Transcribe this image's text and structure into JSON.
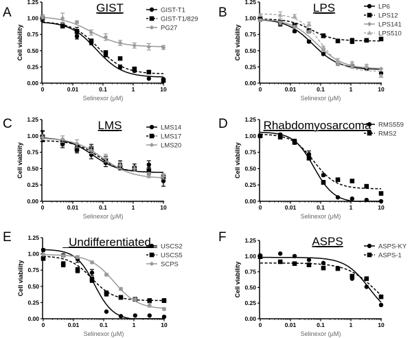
{
  "chart_data": [
    {
      "type": "line",
      "panel": "A",
      "title": "GIST",
      "xlabel": "Selinexor (μM)",
      "ylabel": "Cell viability",
      "xscale": "log",
      "xtick_labels": [
        "0",
        "0.01",
        "0.1",
        "1",
        "10"
      ],
      "ytick_labels": [
        "0.00",
        "0.25",
        "0.50",
        "0.75",
        "1.00",
        "1.25"
      ],
      "ylim": [
        0,
        1.25
      ],
      "legend_position": "top-right",
      "x": [
        0,
        0.0046,
        0.0137,
        0.041,
        0.123,
        0.37,
        1.1,
        3.3,
        10
      ],
      "series": [
        {
          "name": "GIST-T1",
          "color": "#000000",
          "marker": "circle",
          "dash": "solid",
          "values": [
            1.0,
            0.9,
            0.72,
            0.62,
            0.43,
            0.25,
            0.19,
            0.07,
            0.06
          ],
          "errors": [
            0.05,
            0.03,
            0.04,
            0.03,
            0.02,
            0.03,
            0.02,
            0.01,
            0.01
          ],
          "fit": {
            "top": 0.95,
            "bottom": 0.09,
            "ic50": 0.06,
            "hill": 1.0
          }
        },
        {
          "name": "GIST-T1/829",
          "color": "#000000",
          "marker": "square",
          "dash": "dashed",
          "values": [
            1.0,
            0.88,
            0.8,
            0.65,
            0.47,
            0.38,
            0.22,
            0.17,
            0.04
          ],
          "errors": [
            0.05,
            0.03,
            0.06,
            0.03,
            0.03,
            0.02,
            0.02,
            0.02,
            0.02
          ],
          "fit": {
            "top": 0.95,
            "bottom": 0.14,
            "ic50": 0.07,
            "hill": 1.0
          }
        },
        {
          "name": "PG27",
          "color": "#999999",
          "marker": "diamond",
          "dash": "solid",
          "values": [
            1.02,
            1.0,
            0.94,
            0.78,
            0.71,
            0.62,
            0.58,
            0.56,
            0.55
          ],
          "errors": [
            0.03,
            0.08,
            0.02,
            0.04,
            0.05,
            0.04,
            0.04,
            0.05,
            0.03
          ],
          "fit": {
            "top": 1.03,
            "bottom": 0.56,
            "ic50": 0.04,
            "hill": 0.9
          }
        }
      ]
    },
    {
      "type": "line",
      "panel": "B",
      "title": "LPS",
      "xlabel": "Selinexor (μM)",
      "ylabel": "Cell viability",
      "xscale": "log",
      "xtick_labels": [
        "0",
        "0.01",
        "0.1",
        "1",
        "10"
      ],
      "ytick_labels": [
        "0.00",
        "0.25",
        "0.50",
        "0.75",
        "1.00",
        "1.25"
      ],
      "ylim": [
        0,
        1.25
      ],
      "legend_position": "top-right",
      "x": [
        0,
        0.0046,
        0.0137,
        0.041,
        0.123,
        0.37,
        1.1,
        3.3,
        10
      ],
      "series": [
        {
          "name": "LP6",
          "color": "#000000",
          "marker": "circle",
          "dash": "solid",
          "values": [
            0.98,
            0.92,
            0.8,
            0.64,
            0.45,
            0.31,
            0.27,
            0.22,
            0.15
          ],
          "errors": [
            0.03,
            0.04,
            0.02,
            0.02,
            0.02,
            0.02,
            0.02,
            0.02,
            0.02
          ],
          "fit": {
            "top": 0.99,
            "bottom": 0.21,
            "ic50": 0.055,
            "hill": 1.0
          }
        },
        {
          "name": "LPS12",
          "color": "#000000",
          "marker": "square",
          "dash": "dashed",
          "values": [
            1.0,
            0.93,
            0.89,
            0.81,
            0.73,
            0.65,
            0.65,
            0.66,
            0.68
          ],
          "errors": [
            0.03,
            0.04,
            0.03,
            0.02,
            0.03,
            0.02,
            0.04,
            0.01,
            0.01
          ],
          "fit": {
            "top": 0.99,
            "bottom": 0.65,
            "ic50": 0.05,
            "hill": 1.2
          }
        },
        {
          "name": "LPS141",
          "color": "#999999",
          "marker": "diamond",
          "dash": "solid",
          "values": [
            0.97,
            0.93,
            0.87,
            0.79,
            0.52,
            0.29,
            0.25,
            0.24,
            0.22
          ],
          "errors": [
            0.02,
            0.03,
            0.02,
            0.02,
            0.02,
            0.02,
            0.02,
            0.01,
            0.01
          ],
          "fit": {
            "top": 0.99,
            "bottom": 0.22,
            "ic50": 0.075,
            "hill": 1.0
          }
        },
        {
          "name": "LPS510",
          "color": "#aaaaaa",
          "marker": "triangle",
          "dash": "dashed",
          "values": [
            1.05,
            1.05,
            1.03,
            0.91,
            0.55,
            0.35,
            0.31,
            0.27,
            0.11
          ],
          "errors": [
            0.02,
            0.05,
            0.03,
            0.03,
            0.02,
            0.03,
            0.02,
            0.02,
            0.02
          ],
          "fit": {
            "top": 1.07,
            "bottom": 0.18,
            "ic50": 0.1,
            "hill": 1.2
          }
        }
      ]
    },
    {
      "type": "line",
      "panel": "C",
      "title": "LMS",
      "xlabel": "Selinexor (μM)",
      "ylabel": "Cell viability",
      "xscale": "log",
      "xtick_labels": [
        "0",
        "0.01",
        "0.1",
        "1",
        "10"
      ],
      "ytick_labels": [
        "0.00",
        "0.25",
        "0.50",
        "0.75",
        "1.00",
        "1.25"
      ],
      "ylim": [
        0,
        1.25
      ],
      "legend_position": "top-right",
      "x": [
        0,
        0.0046,
        0.0137,
        0.041,
        0.123,
        0.37,
        1.1,
        3.3,
        10
      ],
      "series": [
        {
          "name": "LMS14",
          "color": "#000000",
          "marker": "circle",
          "dash": "solid",
          "values": [
            1.0,
            0.88,
            0.82,
            0.71,
            0.59,
            0.55,
            0.52,
            0.56,
            0.31
          ],
          "errors": [
            0.08,
            0.06,
            0.06,
            0.06,
            0.06,
            0.07,
            0.05,
            0.06,
            0.08
          ],
          "fit": {
            "top": 0.98,
            "bottom": 0.44,
            "ic50": 0.045,
            "hill": 1.0
          }
        },
        {
          "name": "LMS17",
          "color": "#000000",
          "marker": "square",
          "dash": "dashed",
          "values": [
            0.99,
            0.9,
            0.8,
            0.81,
            0.63,
            0.53,
            0.5,
            0.47,
            0.37
          ],
          "errors": [
            0.08,
            0.05,
            0.06,
            0.06,
            0.06,
            0.05,
            0.04,
            0.05,
            0.05
          ],
          "fit": {
            "top": 0.93,
            "bottom": 0.44,
            "ic50": 0.07,
            "hill": 1.1
          }
        },
        {
          "name": "LMS20",
          "color": "#999999",
          "marker": "diamond",
          "dash": "solid",
          "values": [
            0.98,
            0.95,
            0.88,
            0.78,
            0.66,
            0.55,
            0.5,
            0.4,
            0.38
          ],
          "errors": [
            0.04,
            0.05,
            0.06,
            0.05,
            0.06,
            0.05,
            0.04,
            0.04,
            0.04
          ],
          "fit": {
            "top": 0.97,
            "bottom": 0.35,
            "ic50": 0.1,
            "hill": 0.9
          }
        }
      ]
    },
    {
      "type": "line",
      "panel": "D",
      "title": "Rhabdomyosarcoma",
      "xlabel": "Selinexor (μM)",
      "ylabel": "Cell viability",
      "xscale": "log",
      "xtick_labels": [
        "0",
        "0.01",
        "0.1",
        "1",
        "10"
      ],
      "ytick_labels": [
        "0.00",
        "0.25",
        "0.50",
        "0.75",
        "1.00",
        "1.25"
      ],
      "ylim": [
        0,
        1.25
      ],
      "legend_position": "top-right",
      "x": [
        0,
        0.0046,
        0.0137,
        0.041,
        0.123,
        0.37,
        1.1,
        3.3,
        10
      ],
      "series": [
        {
          "name": "RMS559",
          "color": "#000000",
          "marker": "circle",
          "dash": "solid",
          "values": [
            1.0,
            1.02,
            0.91,
            0.72,
            0.4,
            0.06,
            0.04,
            0.02,
            0.0
          ],
          "errors": [
            0.02,
            0.02,
            0.03,
            0.05,
            0.02,
            0.01,
            0.01,
            0.01,
            0.01
          ],
          "fit": {
            "top": 1.06,
            "bottom": -0.02,
            "ic50": 0.06,
            "hill": 1.3
          }
        },
        {
          "name": "RMS2",
          "color": "#000000",
          "marker": "square",
          "dash": "dashed",
          "values": [
            1.0,
            0.98,
            0.91,
            0.66,
            0.29,
            0.33,
            0.31,
            0.23,
            0.12
          ],
          "errors": [
            0.02,
            0.02,
            0.04,
            0.03,
            0.03,
            0.02,
            0.02,
            0.02,
            0.02
          ],
          "fit": {
            "top": 1.03,
            "bottom": 0.19,
            "ic50": 0.06,
            "hill": 1.2
          }
        }
      ]
    },
    {
      "type": "line",
      "panel": "E",
      "title": "Undifferentiated",
      "xlabel": "Selinexor (μM)",
      "ylabel": "Cell viability",
      "xscale": "log",
      "xtick_labels": [
        "0",
        "0.01",
        "0.1",
        "1",
        "10"
      ],
      "ytick_labels": [
        "0.00",
        "0.25",
        "0.50",
        "0.75",
        "1.00",
        "1.25"
      ],
      "ylim": [
        0,
        1.25
      ],
      "legend_position": "top-right",
      "x": [
        0,
        0.0046,
        0.0137,
        0.041,
        0.123,
        0.37,
        1.1,
        3.3,
        10
      ],
      "series": [
        {
          "name": "USCS2",
          "color": "#000000",
          "marker": "circle",
          "dash": "solid",
          "values": [
            1.06,
            0.98,
            0.92,
            0.71,
            0.11,
            0.04,
            0.05,
            0.05,
            0.03
          ],
          "errors": [
            0.02,
            0.02,
            0.05,
            0.05,
            0.01,
            0.01,
            0.01,
            0.01,
            0.01
          ],
          "fit": {
            "top": 1.07,
            "bottom": -0.02,
            "ic50": 0.05,
            "hill": 1.4
          }
        },
        {
          "name": "USCS5",
          "color": "#000000",
          "marker": "square",
          "dash": "dashed",
          "values": [
            0.93,
            0.84,
            0.75,
            0.6,
            0.39,
            0.33,
            0.3,
            0.28,
            0.28
          ],
          "errors": [
            0.03,
            0.04,
            0.04,
            0.04,
            0.04,
            0.03,
            0.03,
            0.03,
            0.03
          ],
          "fit": {
            "top": 0.97,
            "bottom": 0.28,
            "ic50": 0.04,
            "hill": 1.2
          }
        },
        {
          "name": "SCPS",
          "color": "#999999",
          "marker": "diamond",
          "dash": "solid",
          "values": [
            0.99,
            0.97,
            0.95,
            0.87,
            0.68,
            0.46,
            0.3,
            0.21,
            0.15
          ],
          "errors": [
            0.02,
            0.02,
            0.02,
            0.02,
            0.02,
            0.02,
            0.02,
            0.03,
            0.02
          ],
          "fit": {
            "top": 0.99,
            "bottom": 0.15,
            "ic50": 0.22,
            "hill": 1.1
          }
        }
      ]
    },
    {
      "type": "line",
      "panel": "F",
      "title": "ASPS",
      "xlabel": "Selinexor (μM)",
      "ylabel": "Cell viability",
      "xscale": "log",
      "xtick_labels": [
        "0",
        "0.01",
        "0.1",
        "1",
        "10"
      ],
      "ytick_labels": [
        "0.00",
        "0.25",
        "0.50",
        "0.75",
        "1.00",
        "1.25"
      ],
      "ylim": [
        0,
        1.25
      ],
      "legend_position": "top-right",
      "x": [
        0,
        0.0046,
        0.0137,
        0.041,
        0.123,
        0.37,
        1.1,
        3.3,
        10
      ],
      "series": [
        {
          "name": "ASPS-KY",
          "color": "#000000",
          "marker": "circle",
          "dash": "solid",
          "values": [
            1.01,
            1.04,
            1.0,
            0.94,
            0.89,
            0.81,
            0.64,
            0.51,
            0.22
          ],
          "errors": [
            0.01,
            0.01,
            0.01,
            0.01,
            0.01,
            0.01,
            0.01,
            0.01,
            0.01
          ],
          "fit": {
            "top": 0.98,
            "bottom": 0.0,
            "ic50": 4.0,
            "hill": 1.1
          }
        },
        {
          "name": "ASPS-1",
          "color": "#000000",
          "marker": "square",
          "dash": "dashed",
          "values": [
            0.99,
            0.91,
            0.88,
            0.86,
            0.81,
            0.8,
            0.68,
            0.64,
            0.35
          ],
          "errors": [
            0.01,
            0.01,
            0.01,
            0.01,
            0.01,
            0.01,
            0.01,
            0.01,
            0.01
          ],
          "fit": {
            "top": 0.89,
            "bottom": 0.0,
            "ic50": 7.0,
            "hill": 0.9
          }
        }
      ]
    }
  ]
}
